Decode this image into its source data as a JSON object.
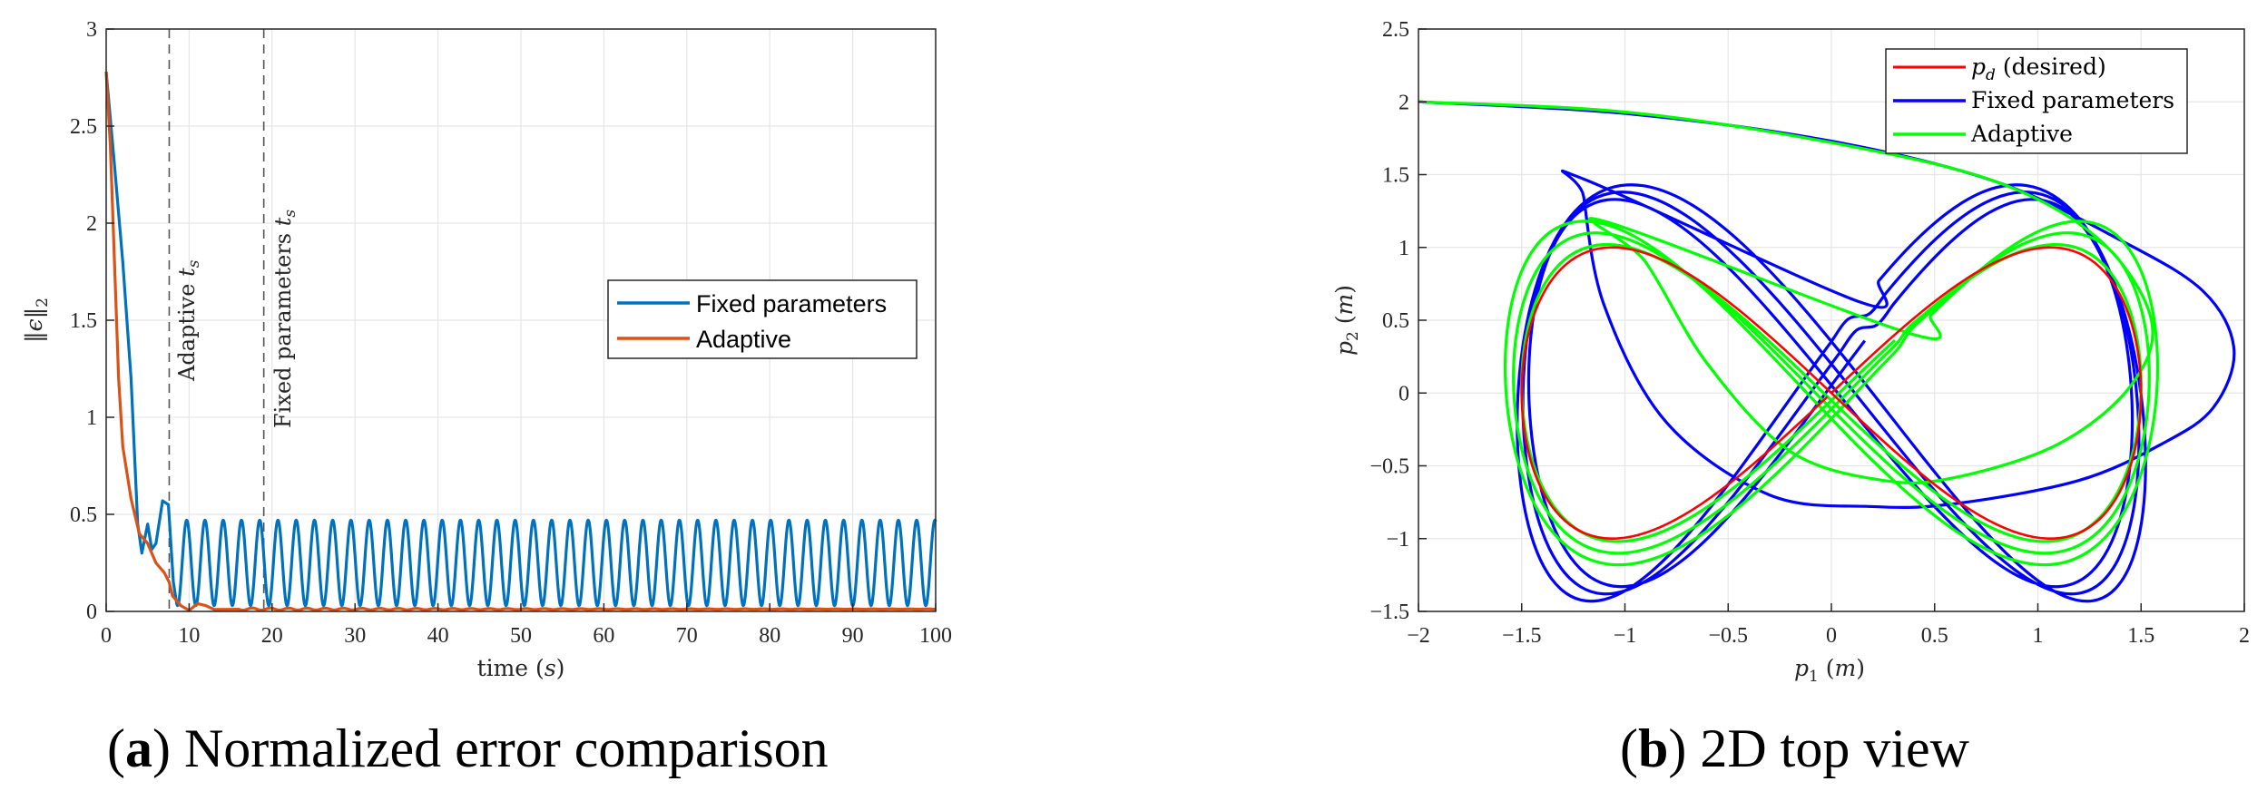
{
  "panel_a": {
    "caption_letter": "a",
    "caption_text": "Normalized error comparison",
    "vline_labels": [
      "Adaptive t_s",
      "Fixed parameters t_s"
    ]
  },
  "panel_b": {
    "caption_letter": "b",
    "caption_text": "2D top view"
  },
  "colors": {
    "fixed_a": "#0072BD",
    "adaptive_a": "#D95319",
    "desired_b": "#FF0000",
    "fixed_b": "#0000FF",
    "adaptive_b": "#00FF00",
    "grid": "#E6E6E6",
    "axis": "#262626"
  },
  "chart_data": [
    {
      "type": "line",
      "xlabel": "time (s)",
      "ylabel": "||ε||₂",
      "xlim": [
        0,
        100
      ],
      "ylim": [
        0,
        3
      ],
      "xticks": [
        0,
        10,
        20,
        30,
        40,
        50,
        60,
        70,
        80,
        90,
        100
      ],
      "yticks": [
        0,
        0.5,
        1,
        1.5,
        2,
        2.5,
        3
      ],
      "xtick_labels": [
        "0",
        "10",
        "20",
        "30",
        "40",
        "50",
        "60",
        "70",
        "80",
        "90",
        "100"
      ],
      "ytick_labels": [
        "0",
        "0.5",
        "1",
        "1.5",
        "2",
        "2.5",
        "3"
      ],
      "grid": true,
      "legend_position": "center-right",
      "vlines": [
        {
          "x": 7.6,
          "label": "Adaptive t_s"
        },
        {
          "x": 19,
          "label": "Fixed parameters t_s"
        }
      ],
      "series": [
        {
          "name": "Fixed parameters",
          "description": "drops from 2.78 to ~0.3 by t≈4.5, then sustained oscillation between ~0.03 and ~0.47 with period ~2.2 s",
          "x": [
            0,
            1,
            2,
            3,
            3.8,
            4.3,
            5,
            5.5,
            6,
            6.8,
            7.5,
            8.1,
            9,
            10,
            11,
            12,
            13,
            14,
            15,
            16,
            100
          ],
          "y": [
            2.78,
            2.3,
            1.8,
            1.2,
            0.45,
            0.3,
            0.45,
            0.32,
            0.35,
            0.57,
            0.55,
            0.15,
            0.5,
            0.06,
            0.52,
            0.05,
            0.48,
            0.04,
            0.47,
            0.03,
            0.24
          ],
          "oscillation": {
            "t_start": 8.5,
            "t_end": 100,
            "period": 2.2,
            "min": 0.03,
            "max": 0.47
          }
        },
        {
          "name": "Adaptive",
          "x": [
            0,
            0.5,
            1,
            1.5,
            2,
            3,
            4,
            5,
            6,
            7,
            7.6,
            8,
            9,
            10,
            11,
            12,
            13,
            14,
            16,
            20,
            30,
            100
          ],
          "y": [
            2.78,
            2.4,
            1.8,
            1.2,
            0.85,
            0.58,
            0.4,
            0.35,
            0.25,
            0.2,
            0.15,
            0.08,
            0.03,
            0.005,
            0.04,
            0.03,
            0.01,
            0.02,
            0.015,
            0.01,
            0.01,
            0.01
          ]
        }
      ]
    },
    {
      "type": "line",
      "xlabel": "p1 (m)",
      "ylabel": "p2 (m)",
      "xlim": [
        -2,
        2
      ],
      "ylim": [
        -1.5,
        2.5
      ],
      "xticks": [
        -2,
        -1.5,
        -1,
        -0.5,
        0,
        0.5,
        1,
        1.5,
        2
      ],
      "yticks": [
        -1.5,
        -1,
        -0.5,
        0,
        0.5,
        1,
        1.5,
        2,
        2.5
      ],
      "xtick_labels": [
        "−2",
        "−1.5",
        "−1",
        "−0.5",
        "0",
        "0.5",
        "1",
        "1.5",
        "2"
      ],
      "ytick_labels": [
        "−1.5",
        "−1",
        "−0.5",
        "0",
        "0.5",
        "1",
        "1.5",
        "2",
        "2.5"
      ],
      "grid": true,
      "legend_position": "top-right",
      "series": [
        {
          "name": "p_d (desired)",
          "shape": "figure-eight",
          "equation": "p1 = 1.5·sin(θ), p2 = sin(2θ)"
        },
        {
          "name": "Fixed parameters",
          "shape": "start at (-2, 2), arc to (1.95, 0.3) then large distorted figure-eight loops",
          "transient": [
            [
              -2.0,
              2.0
            ],
            [
              -1.0,
              1.92
            ],
            [
              0.0,
              1.73
            ],
            [
              0.8,
              1.45
            ],
            [
              1.4,
              1.05
            ],
            [
              1.8,
              0.7
            ],
            [
              1.95,
              0.3
            ],
            [
              1.85,
              -0.1
            ],
            [
              1.6,
              -0.35
            ],
            [
              1.2,
              -0.6
            ],
            [
              0.6,
              -0.76
            ],
            [
              0.2,
              -0.78
            ],
            [
              -0.3,
              -0.7
            ],
            [
              -0.8,
              -0.2
            ],
            [
              -1.1,
              0.6
            ],
            [
              -1.2,
              1.35
            ],
            [
              -1.2,
              1.47
            ]
          ],
          "loop_amplitude": {
            "x": 1.52,
            "y": 1.43
          }
        },
        {
          "name": "Adaptive",
          "shape": "start at (-2, 2), arc to (1.5, 0.5) then converges to figure-eight",
          "transient": [
            [
              -2.0,
              2.0
            ],
            [
              -1.0,
              1.93
            ],
            [
              0.0,
              1.72
            ],
            [
              0.8,
              1.45
            ],
            [
              1.3,
              1.05
            ],
            [
              1.55,
              0.5
            ],
            [
              1.45,
              0.05
            ],
            [
              1.1,
              -0.35
            ],
            [
              0.6,
              -0.58
            ],
            [
              0.25,
              -0.6
            ],
            [
              -0.2,
              -0.4
            ],
            [
              -0.6,
              0.2
            ],
            [
              -0.9,
              0.9
            ],
            [
              -1.1,
              1.18
            ]
          ],
          "loop_amplitude": {
            "x": 1.58,
            "y": 1.18
          }
        }
      ]
    }
  ]
}
